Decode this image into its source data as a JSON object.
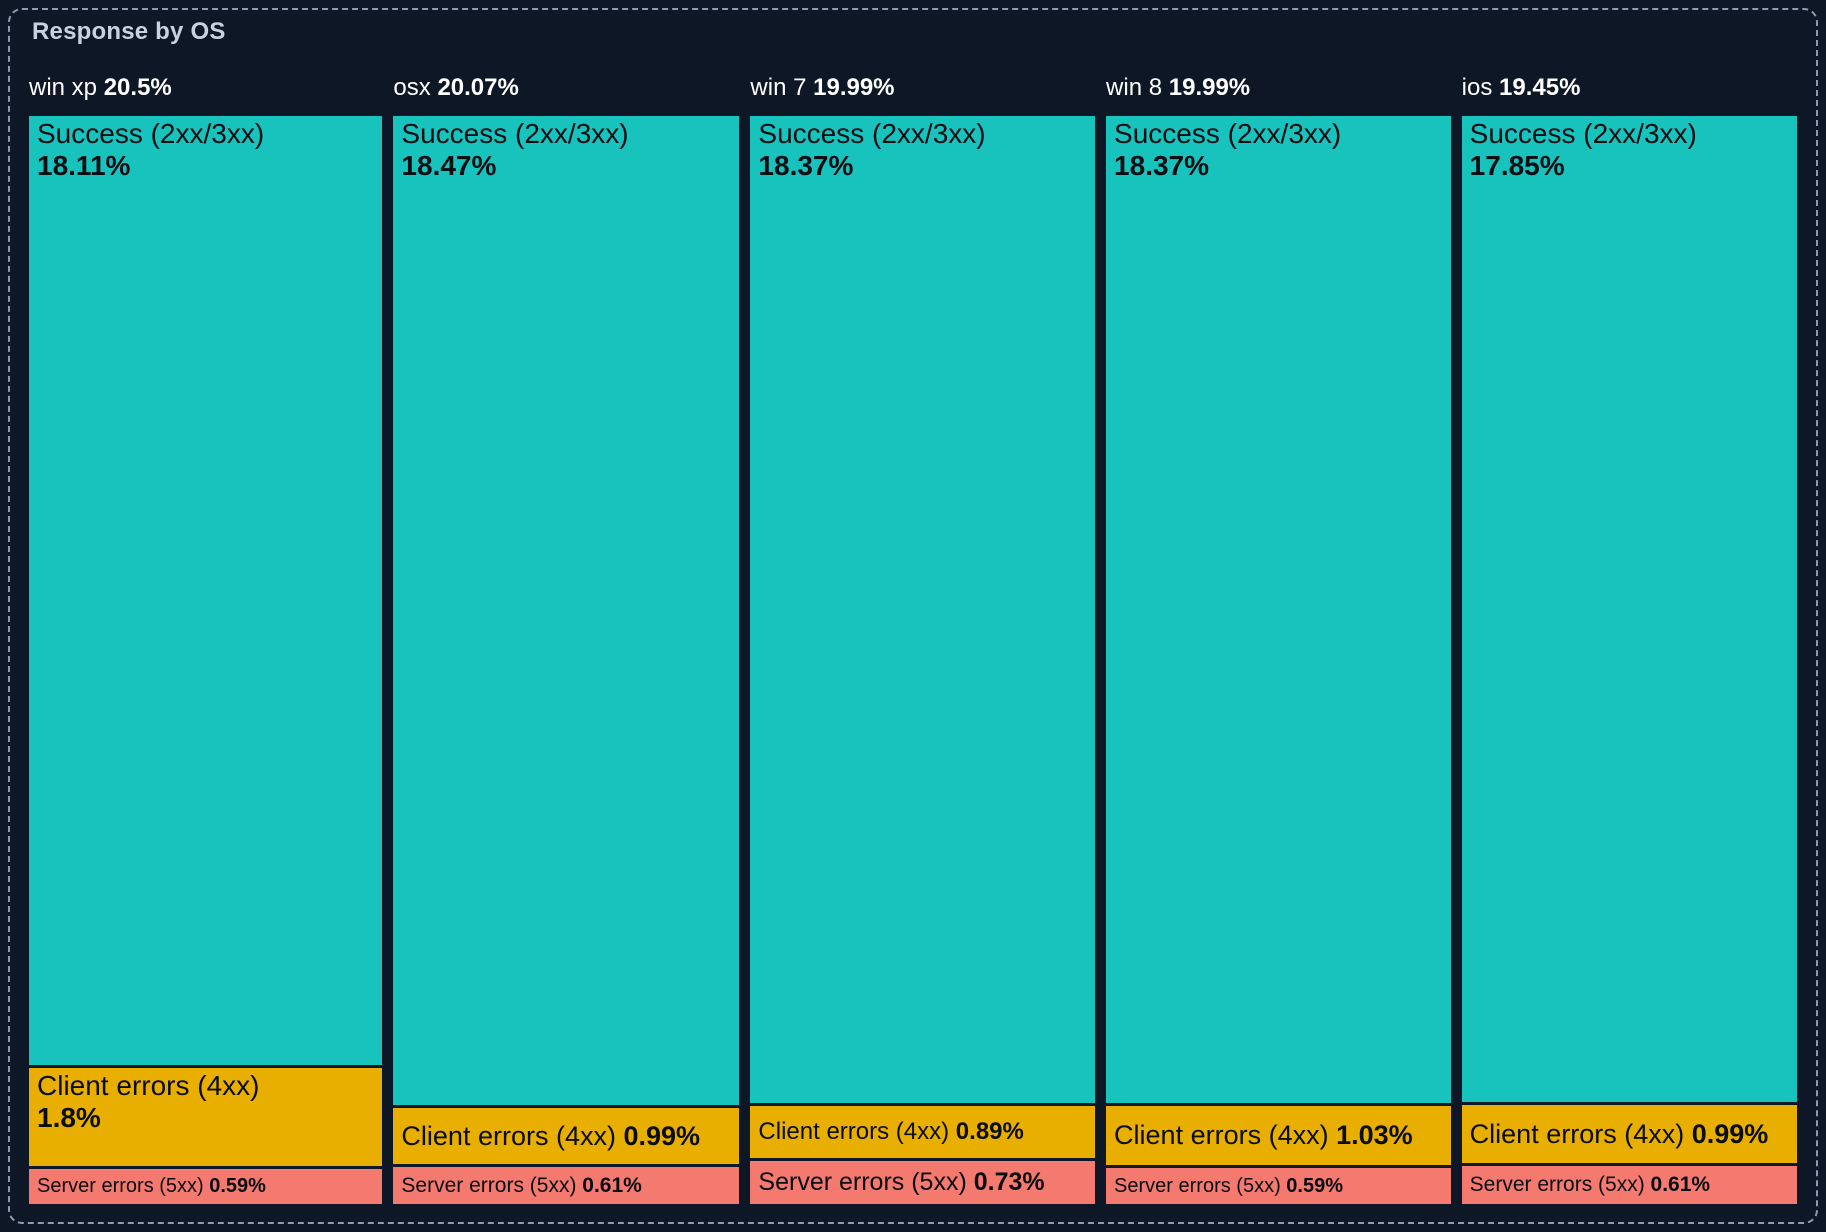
{
  "panel": {
    "title": "Response by OS"
  },
  "colors": {
    "background": "#0D1726",
    "panel_border": "#8C9BB0",
    "title": "#C9D2DE",
    "header_text": "#FFFFFF",
    "success": "#18C3BD",
    "client_errors": "#E9AF00",
    "server_errors": "#F4796F",
    "cell_text": "#0A0D12"
  },
  "chart_data": {
    "type": "treemap",
    "title": "Response by OS",
    "units": "%",
    "layout": "columns-by-os, stacked segments per column, widths and heights proportional to percentage values",
    "legend": "none (labels inline in cells)",
    "groups": [
      {
        "name": "win xp",
        "total": 20.5,
        "total_label": "20.5%",
        "segments": [
          {
            "label": "Success (2xx/3xx)",
            "kind": "success",
            "value": 18.11,
            "value_label": "18.11%"
          },
          {
            "label": "Client errors (4xx)",
            "kind": "client",
            "value": 1.8,
            "value_label": "1.8%"
          },
          {
            "label": "Server errors (5xx)",
            "kind": "server",
            "value": 0.59,
            "value_label": "0.59%"
          }
        ]
      },
      {
        "name": "osx",
        "total": 20.07,
        "total_label": "20.07%",
        "segments": [
          {
            "label": "Success (2xx/3xx)",
            "kind": "success",
            "value": 18.47,
            "value_label": "18.47%"
          },
          {
            "label": "Client errors (4xx)",
            "kind": "client",
            "value": 0.99,
            "value_label": "0.99%"
          },
          {
            "label": "Server errors (5xx)",
            "kind": "server",
            "value": 0.61,
            "value_label": "0.61%"
          }
        ]
      },
      {
        "name": "win 7",
        "total": 19.99,
        "total_label": "19.99%",
        "segments": [
          {
            "label": "Success (2xx/3xx)",
            "kind": "success",
            "value": 18.37,
            "value_label": "18.37%"
          },
          {
            "label": "Client errors (4xx)",
            "kind": "client",
            "value": 0.89,
            "value_label": "0.89%"
          },
          {
            "label": "Server errors (5xx)",
            "kind": "server",
            "value": 0.73,
            "value_label": "0.73%"
          }
        ]
      },
      {
        "name": "win 8",
        "total": 19.99,
        "total_label": "19.99%",
        "segments": [
          {
            "label": "Success (2xx/3xx)",
            "kind": "success",
            "value": 18.37,
            "value_label": "18.37%"
          },
          {
            "label": "Client errors (4xx)",
            "kind": "client",
            "value": 1.03,
            "value_label": "1.03%"
          },
          {
            "label": "Server errors (5xx)",
            "kind": "server",
            "value": 0.59,
            "value_label": "0.59%"
          }
        ]
      },
      {
        "name": "ios",
        "total": 19.45,
        "total_label": "19.45%",
        "segments": [
          {
            "label": "Success (2xx/3xx)",
            "kind": "success",
            "value": 17.85,
            "value_label": "17.85%"
          },
          {
            "label": "Client errors (4xx)",
            "kind": "client",
            "value": 0.99,
            "value_label": "0.99%"
          },
          {
            "label": "Server errors (5xx)",
            "kind": "server",
            "value": 0.61,
            "value_label": "0.61%"
          }
        ]
      }
    ]
  }
}
